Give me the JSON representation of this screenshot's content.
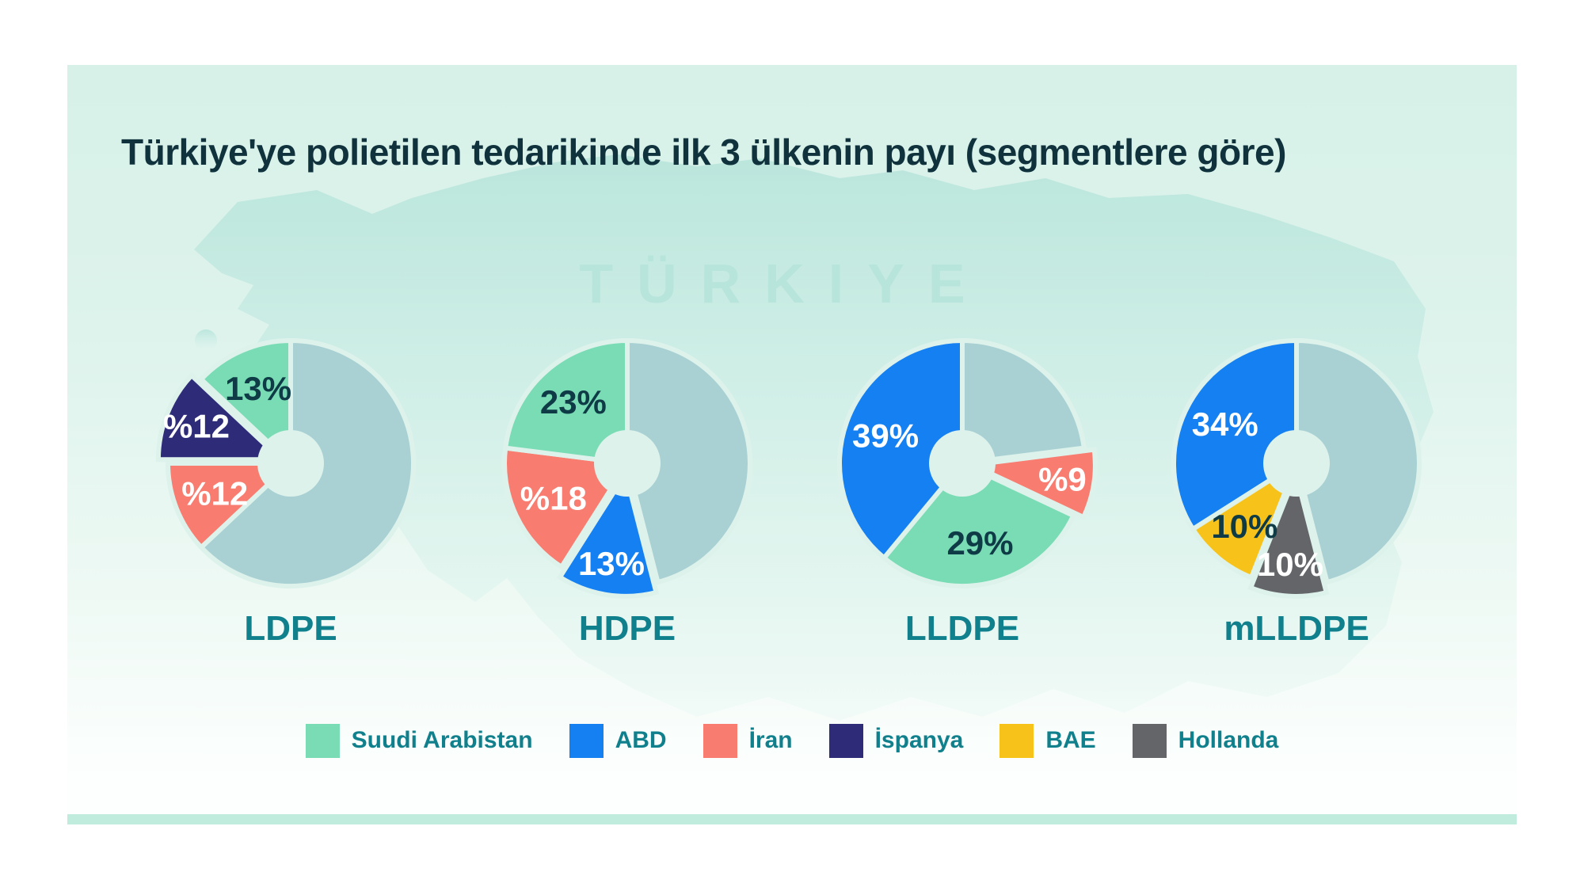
{
  "page": {
    "title": "Türkiye'ye polietilen tedarikinde ilk 3 ülkenin payı (segmentlere göre)",
    "map_watermark": "TÜRKIYE"
  },
  "colors": {
    "suudi": "#79dcb5",
    "abd": "#1580f2",
    "iran": "#f87d70",
    "ispanya": "#2e2b79",
    "bae": "#f7c31a",
    "hollanda": "#636568",
    "other": "#a9d1d3",
    "gap": "#def2ec",
    "accent_teal": "#11808d",
    "title_dark": "#10323d",
    "label_dark": "#0e3b46",
    "label_light": "#ffffff",
    "strip": "#bfecdd",
    "card_top": "#d7f1e8",
    "card_bottom": "#fdfffe",
    "map_fill": "#c6e9e1",
    "watermark": "#b5e3da"
  },
  "legend": {
    "items": [
      {
        "label": "Suudi Arabistan",
        "color": "suudi"
      },
      {
        "label": "ABD",
        "color": "abd"
      },
      {
        "label": "İran",
        "color": "iran"
      },
      {
        "label": "İspanya",
        "color": "ispanya"
      },
      {
        "label": "BAE",
        "color": "bae"
      },
      {
        "label": "Hollanda",
        "color": "hollanda"
      }
    ]
  },
  "chart_data": [
    {
      "type": "pie",
      "donut": true,
      "title": "LDPE",
      "start_angle_deg": 0,
      "direction": "clockwise",
      "segments": [
        {
          "name": "other",
          "value": 63,
          "label": "",
          "color": "other",
          "exploded": false,
          "label_dark": false
        },
        {
          "name": "İran",
          "value": 12,
          "label": "%12",
          "color": "iran",
          "exploded": false,
          "label_dark": false
        },
        {
          "name": "İspanya",
          "value": 12,
          "label": "%12",
          "color": "ispanya",
          "exploded": true,
          "label_dark": false
        },
        {
          "name": "Suudi Arabistan",
          "value": 13,
          "label": "13%",
          "color": "suudi",
          "exploded": false,
          "label_dark": true
        }
      ]
    },
    {
      "type": "pie",
      "donut": true,
      "title": "HDPE",
      "start_angle_deg": 0,
      "direction": "clockwise",
      "segments": [
        {
          "name": "other",
          "value": 46,
          "label": "",
          "color": "other",
          "exploded": false,
          "label_dark": false
        },
        {
          "name": "ABD",
          "value": 13,
          "label": "13%",
          "color": "abd",
          "exploded": true,
          "label_dark": false
        },
        {
          "name": "İran",
          "value": 18,
          "label": "%18",
          "color": "iran",
          "exploded": false,
          "label_dark": false
        },
        {
          "name": "Suudi Arabistan",
          "value": 23,
          "label": "23%",
          "color": "suudi",
          "exploded": false,
          "label_dark": true
        }
      ]
    },
    {
      "type": "pie",
      "donut": true,
      "title": "LLDPE",
      "start_angle_deg": 0,
      "direction": "clockwise",
      "segments": [
        {
          "name": "other",
          "value": 23,
          "label": "",
          "color": "other",
          "exploded": false,
          "label_dark": false
        },
        {
          "name": "İran",
          "value": 9,
          "label": "%9",
          "color": "iran",
          "exploded": true,
          "label_dark": false
        },
        {
          "name": "Suudi Arabistan",
          "value": 29,
          "label": "29%",
          "color": "suudi",
          "exploded": false,
          "label_dark": true
        },
        {
          "name": "ABD",
          "value": 39,
          "label": "39%",
          "color": "abd",
          "exploded": false,
          "label_dark": false
        }
      ]
    },
    {
      "type": "pie",
      "donut": true,
      "title": "mLLDPE",
      "start_angle_deg": 0,
      "direction": "clockwise",
      "segments": [
        {
          "name": "other",
          "value": 46,
          "label": "",
          "color": "other",
          "exploded": false,
          "label_dark": false
        },
        {
          "name": "Hollanda",
          "value": 10,
          "label": "10%",
          "color": "hollanda",
          "exploded": true,
          "label_dark": false
        },
        {
          "name": "BAE",
          "value": 10,
          "label": "10%",
          "color": "bae",
          "exploded": false,
          "label_dark": true
        },
        {
          "name": "ABD",
          "value": 34,
          "label": "34%",
          "color": "abd",
          "exploded": false,
          "label_dark": false
        }
      ]
    }
  ]
}
